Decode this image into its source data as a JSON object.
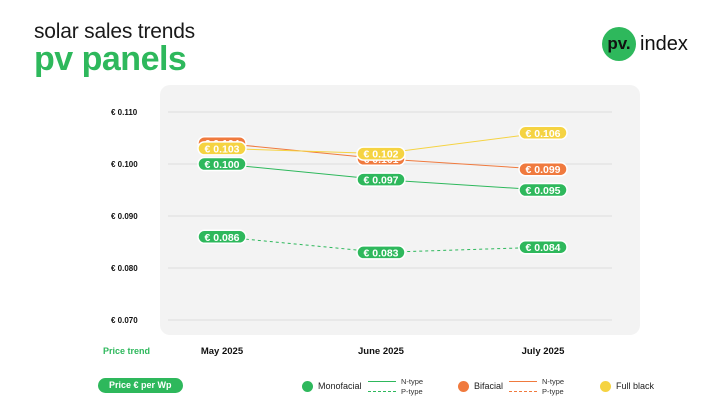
{
  "header": {
    "subtitle": "solar sales trends",
    "title": "pv panels"
  },
  "logo": {
    "badge": "pv.",
    "text": "index"
  },
  "colors": {
    "green": "#2eb85c",
    "orange": "#f07a3e",
    "yellow": "#f5d342",
    "grid": "#dedede",
    "panel": "#f3f3f3"
  },
  "chart_data": {
    "type": "line",
    "categories": [
      "May 2025",
      "June 2025",
      "July 2025"
    ],
    "category_axis_label": "Price trend",
    "ylim": [
      0.07,
      0.11
    ],
    "yticks": [
      0.07,
      0.08,
      0.09,
      0.1,
      0.11
    ],
    "ytick_labels": [
      "€ 0.070",
      "€ 0.080",
      "€ 0.090",
      "€ 0.100",
      "€ 0.110"
    ],
    "grid": true,
    "series": [
      {
        "name": "Monofacial",
        "subtype": "N-type",
        "color": "#2eb85c",
        "dashed": false,
        "values": [
          0.1,
          0.097,
          0.095
        ],
        "labels": [
          "€ 0.100",
          "€ 0.097",
          "€ 0.095"
        ]
      },
      {
        "name": "Monofacial",
        "subtype": "P-type",
        "color": "#2eb85c",
        "dashed": true,
        "values": [
          0.086,
          0.083,
          0.084
        ],
        "labels": [
          "€ 0.086",
          "€ 0.083",
          "€ 0.084"
        ]
      },
      {
        "name": "Bifacial",
        "subtype": "N-type",
        "color": "#f07a3e",
        "dashed": false,
        "values": [
          0.104,
          0.101,
          0.099
        ],
        "labels": [
          "€ 0.104",
          "€ 0.101",
          "€ 0.099"
        ]
      },
      {
        "name": "Full black",
        "color": "#f5d342",
        "dashed": false,
        "values": [
          0.103,
          0.102,
          0.106
        ],
        "labels": [
          "€ 0.103",
          "€ 0.102",
          "€ 0.106"
        ]
      }
    ]
  },
  "footer": {
    "unit_label": "Price € per Wp",
    "legend": [
      {
        "name": "Monofacial",
        "color": "#2eb85c",
        "line_types": [
          "N-type",
          "P-type"
        ]
      },
      {
        "name": "Bifacial",
        "color": "#f07a3e",
        "line_types": [
          "N-type",
          "P-type"
        ]
      },
      {
        "name": "Full black",
        "color": "#f5d342"
      }
    ]
  }
}
